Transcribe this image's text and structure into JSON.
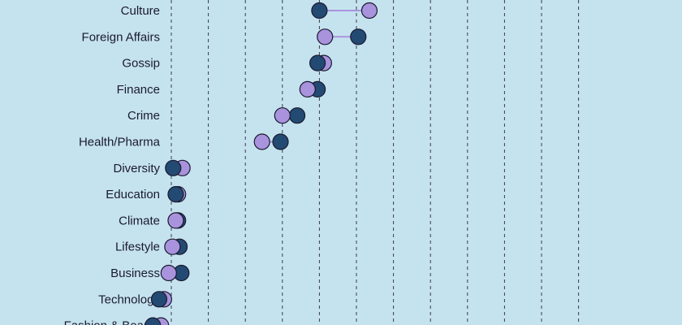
{
  "colors": {
    "background": "#c5e3ef",
    "series_a": "#234a73",
    "series_b": "#a993dd",
    "connector": "#a993dd",
    "gridline": "#3a3a4a",
    "outline": "#1a1a2e"
  },
  "chart_data": {
    "type": "dumbbell",
    "grid": "vertical dashed",
    "xlim": [
      0,
      13
    ],
    "categories": [
      "Culture",
      "Foreign Affairs",
      "Gossip",
      "Finance",
      "Crime",
      "Health/Pharma",
      "Diversity",
      "Education",
      "Climate",
      "Lifestyle",
      "Business",
      "Technology",
      "Fashion & Beauty"
    ],
    "series": [
      {
        "color": "#234a73",
        "values": [
          7.0,
          8.05,
          6.95,
          6.95,
          6.4,
          5.95,
          3.05,
          3.12,
          3.18,
          3.22,
          3.27,
          2.67,
          2.5
        ]
      },
      {
        "color": "#a993dd",
        "values": [
          8.35,
          7.15,
          7.12,
          6.68,
          6.0,
          5.45,
          3.3,
          3.18,
          3.12,
          3.03,
          2.93,
          2.8,
          2.72
        ]
      }
    ]
  }
}
